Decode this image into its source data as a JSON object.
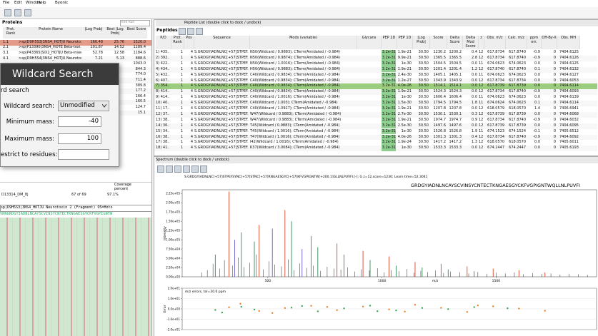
{
  "menu": [
    "File",
    "Edit",
    "Window",
    "Help",
    "Byonic"
  ],
  "proteins": {
    "title": "Proteins",
    "search_placeholder": "Find Run",
    "columns": [
      "Prot. Rank",
      "Protein Name",
      "|Log Prob|",
      "Best |Log Prob|",
      "Best Score"
    ],
    "rows": [
      [
        "1.1",
        ">sp|D9H5S3|3NS4_HOTJU Neuroto...",
        "166.48",
        "25.76",
        "1520.0"
      ],
      [
        "2.1",
        ">sp|P13390|3NS4_HOTE Beta-toxi...",
        "101.87",
        "14.52",
        "1189.4"
      ],
      [
        "3.1",
        ">sp|P43365|SIX2_HOTJU Beta-insect...",
        "52.78",
        "12.58",
        "1184.6"
      ],
      [
        "4.1",
        ">sp|D9H5S4|3NS4_HOTJU Neurotox...",
        "7.21",
        "5.13",
        "888.6"
      ],
      [
        null,
        null,
        null,
        null,
        "1043.0"
      ],
      [
        null,
        null,
        null,
        null,
        "844.3"
      ],
      [
        null,
        null,
        null,
        null,
        "774.0"
      ],
      [
        null,
        null,
        null,
        null,
        "711.4"
      ],
      [
        null,
        null,
        null,
        null,
        "389.8"
      ],
      [
        null,
        null,
        null,
        null,
        "177.2"
      ],
      [
        null,
        null,
        null,
        null,
        "166.4"
      ],
      [
        null,
        null,
        null,
        null,
        "160.5"
      ],
      [
        null,
        null,
        null,
        null,
        "124.7"
      ],
      [
        null,
        null,
        null,
        null,
        "15.1"
      ]
    ],
    "coverage": {
      "headers": [
        "Coverage",
        "percent"
      ],
      "row": [
        "D13314_DM_8j",
        "67 of 69",
        "97.1%"
      ]
    },
    "sequence_title": "sp|D9H5S3|3NS4_HOTJU Neurotoxin 2 (Fragment) OS=Hoto",
    "sequence": "VRNGRDGYIADNLNCAYSCVINSYCNTECTKNGAESGYCKFVGPIGNTW"
  },
  "dialog": {
    "title": "Wildcard Search",
    "section": "rd search",
    "wildcard_label": "Wildcard search:",
    "wildcard_value": "Unmodified",
    "min_label": "Minimum mass:",
    "min_value": "-40",
    "max_label": "Maximum mass:",
    "max_value": "100",
    "restrict_label": "estrict to residues:"
  },
  "peptides": {
    "panel_title": "Peptide List (double click to dock / undock)",
    "title": "Peptides",
    "columns": [
      "P/D",
      "Prot. Rank",
      "Pos",
      "Sequence",
      "Mods (variable)",
      "Glycans",
      "PEP 2D",
      "PEP 1D",
      "|Log Prob|",
      "Score",
      "Delta Score",
      "Delta Mod Score",
      "z",
      "Obs. m/z",
      "Calc. m/z",
      "ppm err.",
      "Off-By-X",
      "Obs. MH"
    ],
    "selected_row": 6,
    "rows": [
      [
        "1) 435...",
        "1",
        "4",
        "S.GRDGYIADNLNC[+57]STPEF...",
        "N50(Wildcard / 0.9883); CTerm(Amidated / -0.984)",
        "3.2e-31",
        "1.9e-21",
        "30.50",
        "1230.2",
        "1200.2",
        "0.4",
        "12",
        "617.8734",
        "617.8740",
        "-0.9",
        "0",
        "7404.6125"
      ],
      [
        "2) 392...",
        "1",
        "4",
        "S.GRDGYIADNLNC[+57]STPEF...",
        "N50(Wildcard / 0.9874); CTerm(Amidated / -0.984)",
        "3.2e-31",
        "9.9e-21",
        "30.50",
        "1365.5",
        "1365.5",
        "2.8",
        "12",
        "617.8734",
        "617.8740",
        "-0.9",
        "0",
        "7404.6126"
      ],
      [
        "3) 422...",
        "1",
        "4",
        "S.GRDGYIADNLNC[+57]STPEF...",
        "N50(Wildcard / 1.0016); CTerm(Amidated / -0.984)",
        "3.2e-31",
        "1e-30",
        "30.50",
        "1504.5",
        "1504.5",
        "0.0",
        "11",
        "674.0623",
        "674.0623",
        "0.0",
        "0",
        "7404.6125"
      ],
      [
        "4) 434...",
        "1",
        "4",
        "S.GRDGYIADNLNC[+57]STPEF...",
        "H50(Wildcard / 0.9883); CTerm(Amidated / -0.984)",
        "3.2e-31",
        "1.9e-21",
        "30.50",
        "1201.4",
        "1201.4",
        "1.2",
        "12",
        "617.8740",
        "617.8740",
        "0.1",
        "0",
        "7404.6132"
      ],
      [
        "5) 432...",
        "1",
        "4",
        "S.GRDGYIADNLNC[+57]STPEF...",
        "C40(Wildcard / 0.9834); CTerm(Amidated / -0.984)",
        "3.2e-31",
        "2.4e-30",
        "30.50",
        "1405.1",
        "1405.1",
        "0.0",
        "11",
        "674.0623",
        "674.0623",
        "0.0",
        "0",
        "7404.6127"
      ],
      [
        "6) 407...",
        "1",
        "4",
        "S.GRDGYIADNLNC[+57]STPEF...",
        "C40(Wildcard / 0.9834); CTerm(Amidated / -0.984)",
        "3.2e-31",
        "1.2e-27",
        "30.50",
        "1343.9",
        "1343.9",
        "0.0",
        "12",
        "617.8734",
        "617.8734",
        "0.0",
        "0",
        "7404.6053"
      ],
      [
        "7) 354...",
        "1",
        "4",
        "S.GRDGYIADNLNC[+57]STPEF...",
        "C40(Wildcard / 0.9834); CTerm(Amidated / -0.984)",
        "3.2e-31",
        "4.0e-26",
        "30.50",
        "1514.1",
        "1514.1",
        "0.0",
        "12",
        "617.8739",
        "617.8739",
        "0.0",
        "0",
        "7404.6114"
      ],
      [
        "8) 414...",
        "1",
        "4",
        "S.GRDGYIADNLNC[+57]STPEF...",
        "C40(Wildcard / 0.9834); CTerm(Amidated / -0.984)",
        "3.2e-31",
        "1.9e-21",
        "30.50",
        "1524.3",
        "1524.3",
        "0.0",
        "12",
        "617.8734",
        "617.8740",
        "-0.9",
        "0",
        "7404.6093"
      ],
      [
        "9) 414...",
        "1",
        "4",
        "S.GRDGYIADNLNC[+57]STPEF...",
        "C40(Wildcard / 1.0016); CTerm(Amidated / -0.984)",
        "3.2e-31",
        "1e-30",
        "30.50",
        "1606.4",
        "1606.4",
        "0.0",
        "11",
        "674.0623",
        "674.0623",
        "0.0",
        "0",
        "7404.6139"
      ],
      [
        "10) 40...",
        "1",
        "4",
        "S.GRDGYIADNLNC[+57]STPEF...",
        "C40(Wildcard / 1.003); CTerm(Amidated / -0.984)",
        "3.2e-31",
        "1.5e-30",
        "30.50",
        "1794.5",
        "1794.5",
        "1.8",
        "11",
        "674.0624",
        "674.0623",
        "0.1",
        "0",
        "7404.6114"
      ],
      [
        "11) 17...",
        "1",
        "4",
        "S.GRDGYIADNLNC[+57]STPEF...",
        "C40(Wildcard / 1.0927); CTerm(Amidated / -0.984)",
        "3.2e-31",
        "1.9e-21",
        "30.50",
        "1207.8",
        "1207.8",
        "0.0",
        "12",
        "618.0579",
        "618.0570",
        "1.4",
        "0",
        "7406.6941"
      ],
      [
        "12) 37...",
        "1",
        "4",
        "S.GRDGYIADNLNC[+57]STPEF...",
        "W47(Wildcard / 0.9883); CTerm(Amidated / -0.984)",
        "3.2e-31",
        "2.7e-30",
        "30.50",
        "1530.1",
        "1530.1",
        "0.3",
        "12",
        "617.8739",
        "617.8739",
        "0.0",
        "0",
        "7404.6068"
      ],
      [
        "13) 38...",
        "1",
        "4",
        "S.GRDGYIADNLNC[+57]STPEF...",
        "W47(Wildcard / 0.9883); CTerm(Amidated / -0.984)",
        "3.2e-31",
        "1.9e-21",
        "30.50",
        "1974.7",
        "1974.7",
        "0.9",
        "12",
        "617.8734",
        "617.8740",
        "-0.9",
        "0",
        "7404.6032"
      ],
      [
        "14) 36...",
        "1",
        "4",
        "S.GRDGYIADNLNC[+57]STPEF...",
        "T45(Wildcard / 0.9883); CTerm(Amidated / -0.984)",
        "3.2e-31",
        "2.5e-30",
        "30.50",
        "1497.6",
        "1497.6",
        "0.0",
        "12",
        "617.8739",
        "617.8739",
        "0.0",
        "0",
        "7404.6095"
      ],
      [
        "15) 34...",
        "1",
        "4",
        "S.GRDGYIADNLNC[+57]STPEF...",
        "T45(Wildcard / 1.0016); CTerm(Amidated / -0.984)",
        "3.2e-31",
        "1e-30",
        "30.50",
        "1526.8",
        "1526.8",
        "1.9",
        "11",
        "674.1523",
        "674.1524",
        "-0.1",
        "0",
        "7405.6512"
      ],
      [
        "16) 38...",
        "1",
        "4",
        "S.GRDGYIADNLNC[+57]STPEF...",
        "T47(Wildcard / 1.0016); CTerm(Amidated / -0.984)",
        "3.2e-31",
        "4.0e-26",
        "30.50",
        "1301.3",
        "1301.3",
        "0.4",
        "12",
        "617.8734",
        "617.8740",
        "-0.9",
        "0",
        "7404.6092"
      ],
      [
        "17) 38...",
        "1",
        "4",
        "S.GRDGYIADNLNC[+57]STPEF...",
        "I42(Wildcard / 1.0016); CTerm(Amidated / -0.984)",
        "3.2e-31",
        "1.9e-24",
        "30.50",
        "1417.2",
        "1417.2",
        "1.3",
        "12",
        "618.0570",
        "618.0570",
        "0.0",
        "0",
        "7405.6011"
      ],
      [
        "18) 41...",
        "1",
        "4",
        "S.GRDGYIADNLNC[+57]STPEF...",
        "K37(Wildcard / 3.0084); CTerm(Amidated / -0.984)",
        "3.2e-31",
        "1e-30",
        "30.50",
        "1533.3",
        "1533.3",
        "0.0",
        "12",
        "674.2447",
        "674.2447",
        "0.0",
        "0",
        "7405.6193"
      ]
    ]
  },
  "spectrum": {
    "panel_title": "Spectrum (double click to dock / undock)",
    "header": "S.GRDGYIADNLNC[+57]STPEFSYNC[+57]STNC[+57]RNGAESGYC[+57]KFVGPIGNTW[+200.1]GLLNLPUVFI.[-]; G z=12,score=1230; Learn time=52.3041",
    "peptide": "GRDGYIADNLNCAYSCVINSYCNTECTKNGAESGYCKFVGPIGNTWQLLNLPUVFI"
  },
  "chart_data": [
    {
      "type": "spectrum",
      "xlabel": "m/z",
      "ylabel": "Intensity",
      "xlim": [
        125,
        1940
      ],
      "ylim": [
        0,
        235000
      ],
      "xticks": [
        500,
        1000,
        1500
      ],
      "yticks": [
        {
          "value": 0,
          "label": "0.00e+00"
        },
        {
          "value": 25000,
          "label": "2.50e+04"
        },
        {
          "value": 50000,
          "label": "5.00e+04"
        },
        {
          "value": 75000,
          "label": "7.50e+04"
        },
        {
          "value": 100000,
          "label": "1.00e+05"
        },
        {
          "value": 125000,
          "label": "1.25e+05"
        },
        {
          "value": 150000,
          "label": "1.50e+05"
        },
        {
          "value": 175000,
          "label": "1.75e+05"
        },
        {
          "value": 200000,
          "label": "2.00e+05"
        },
        {
          "value": 225000,
          "label": "2.25e+05"
        }
      ],
      "series": [
        {
          "color": "#222222",
          "x": [
            210,
            235,
            260,
            290,
            310,
            345,
            370,
            395,
            420,
            450,
            480,
            505,
            530,
            560,
            590,
            615,
            640,
            670,
            700,
            730,
            760,
            790,
            820,
            850,
            880,
            910,
            945,
            980,
            1010,
            1040,
            1075,
            1110,
            1140,
            1170,
            1200,
            1235,
            1270,
            1300,
            1340,
            1380,
            1420,
            1460,
            1500,
            1540,
            1580,
            1620,
            1660,
            1700,
            1740,
            1780,
            1820,
            1860,
            1900
          ],
          "values": [
            12000,
            18000,
            35000,
            22000,
            45000,
            30000,
            52000,
            26000,
            38000,
            60000,
            20000,
            42000,
            33000,
            28000,
            47000,
            18000,
            36000,
            24000,
            30000,
            16000,
            27000,
            22000,
            19000,
            25000,
            14000,
            20000,
            17000,
            23000,
            12000,
            18000,
            15000,
            21000,
            11000,
            16000,
            13000,
            17000,
            10000,
            14000,
            12000,
            9000,
            13000,
            8000,
            11000,
            9000,
            12000,
            7000,
            10000,
            8000,
            9000,
            6000,
            8000,
            7000,
            5000
          ]
        },
        {
          "color": "#2e8b57",
          "x": [
            270,
            384,
            441,
            604,
            719,
            834,
            948,
            1062,
            1176,
            1290,
            1404
          ],
          "values": [
            60000,
            120000,
            95000,
            150000,
            80000,
            60000,
            45000,
            30000,
            25000,
            20000,
            15000
          ]
        },
        {
          "color": "#d9472b",
          "x": [
            330,
            462,
            575,
            690,
            803,
            917,
            1031,
            1145,
            1259,
            1373,
            1487,
            1600,
            1714
          ],
          "values": [
            230000,
            140000,
            180000,
            110000,
            90000,
            70000,
            55000,
            40000,
            35000,
            28000,
            22000,
            18000,
            12000
          ]
        },
        {
          "color": "#6a5acd",
          "x": [
            355,
            520,
            650
          ],
          "values": [
            100000,
            130000,
            75000
          ]
        }
      ]
    },
    {
      "type": "scatter",
      "title": "m/z errors, tol=20.0 ppm",
      "ylabel": "Error",
      "xlim": [
        125,
        1940
      ],
      "ylim": [
        -20,
        20
      ],
      "yticks": [
        {
          "value": -20,
          "label": "-2.0e+01"
        },
        {
          "value": -10,
          "label": "-1.0e+01"
        },
        {
          "value": 0,
          "label": "0.0e+00"
        },
        {
          "value": 10,
          "label": "1.0e+01"
        },
        {
          "value": 20,
          "label": "2.0e+01"
        }
      ],
      "series": [
        {
          "color": "#e8822a",
          "x": [
            330,
            462,
            575,
            690,
            803,
            917,
            1031,
            1145,
            1259,
            1373,
            1487,
            1600,
            1714,
            380,
            520,
            760,
            1100,
            1420
          ],
          "values": [
            1.5,
            -2,
            0.8,
            3,
            -1.2,
            2.2,
            -0.5,
            4,
            1,
            -3,
            2.5,
            0.3,
            -1.8,
            5,
            -4,
            1.9,
            -2.6,
            3.3
          ]
        },
        {
          "color": "#3aa55a",
          "x": [
            270,
            384,
            441,
            604,
            719,
            834,
            948,
            1062,
            1176,
            1290,
            1404,
            300,
            650,
            980,
            1550
          ],
          "values": [
            -1,
            2,
            -0.6,
            1.2,
            -2.4,
            0.5,
            3.1,
            -1.5,
            0.9,
            -0.2,
            1.7,
            -3.5,
            2.8,
            -2.2,
            0.6
          ]
        }
      ]
    }
  ]
}
